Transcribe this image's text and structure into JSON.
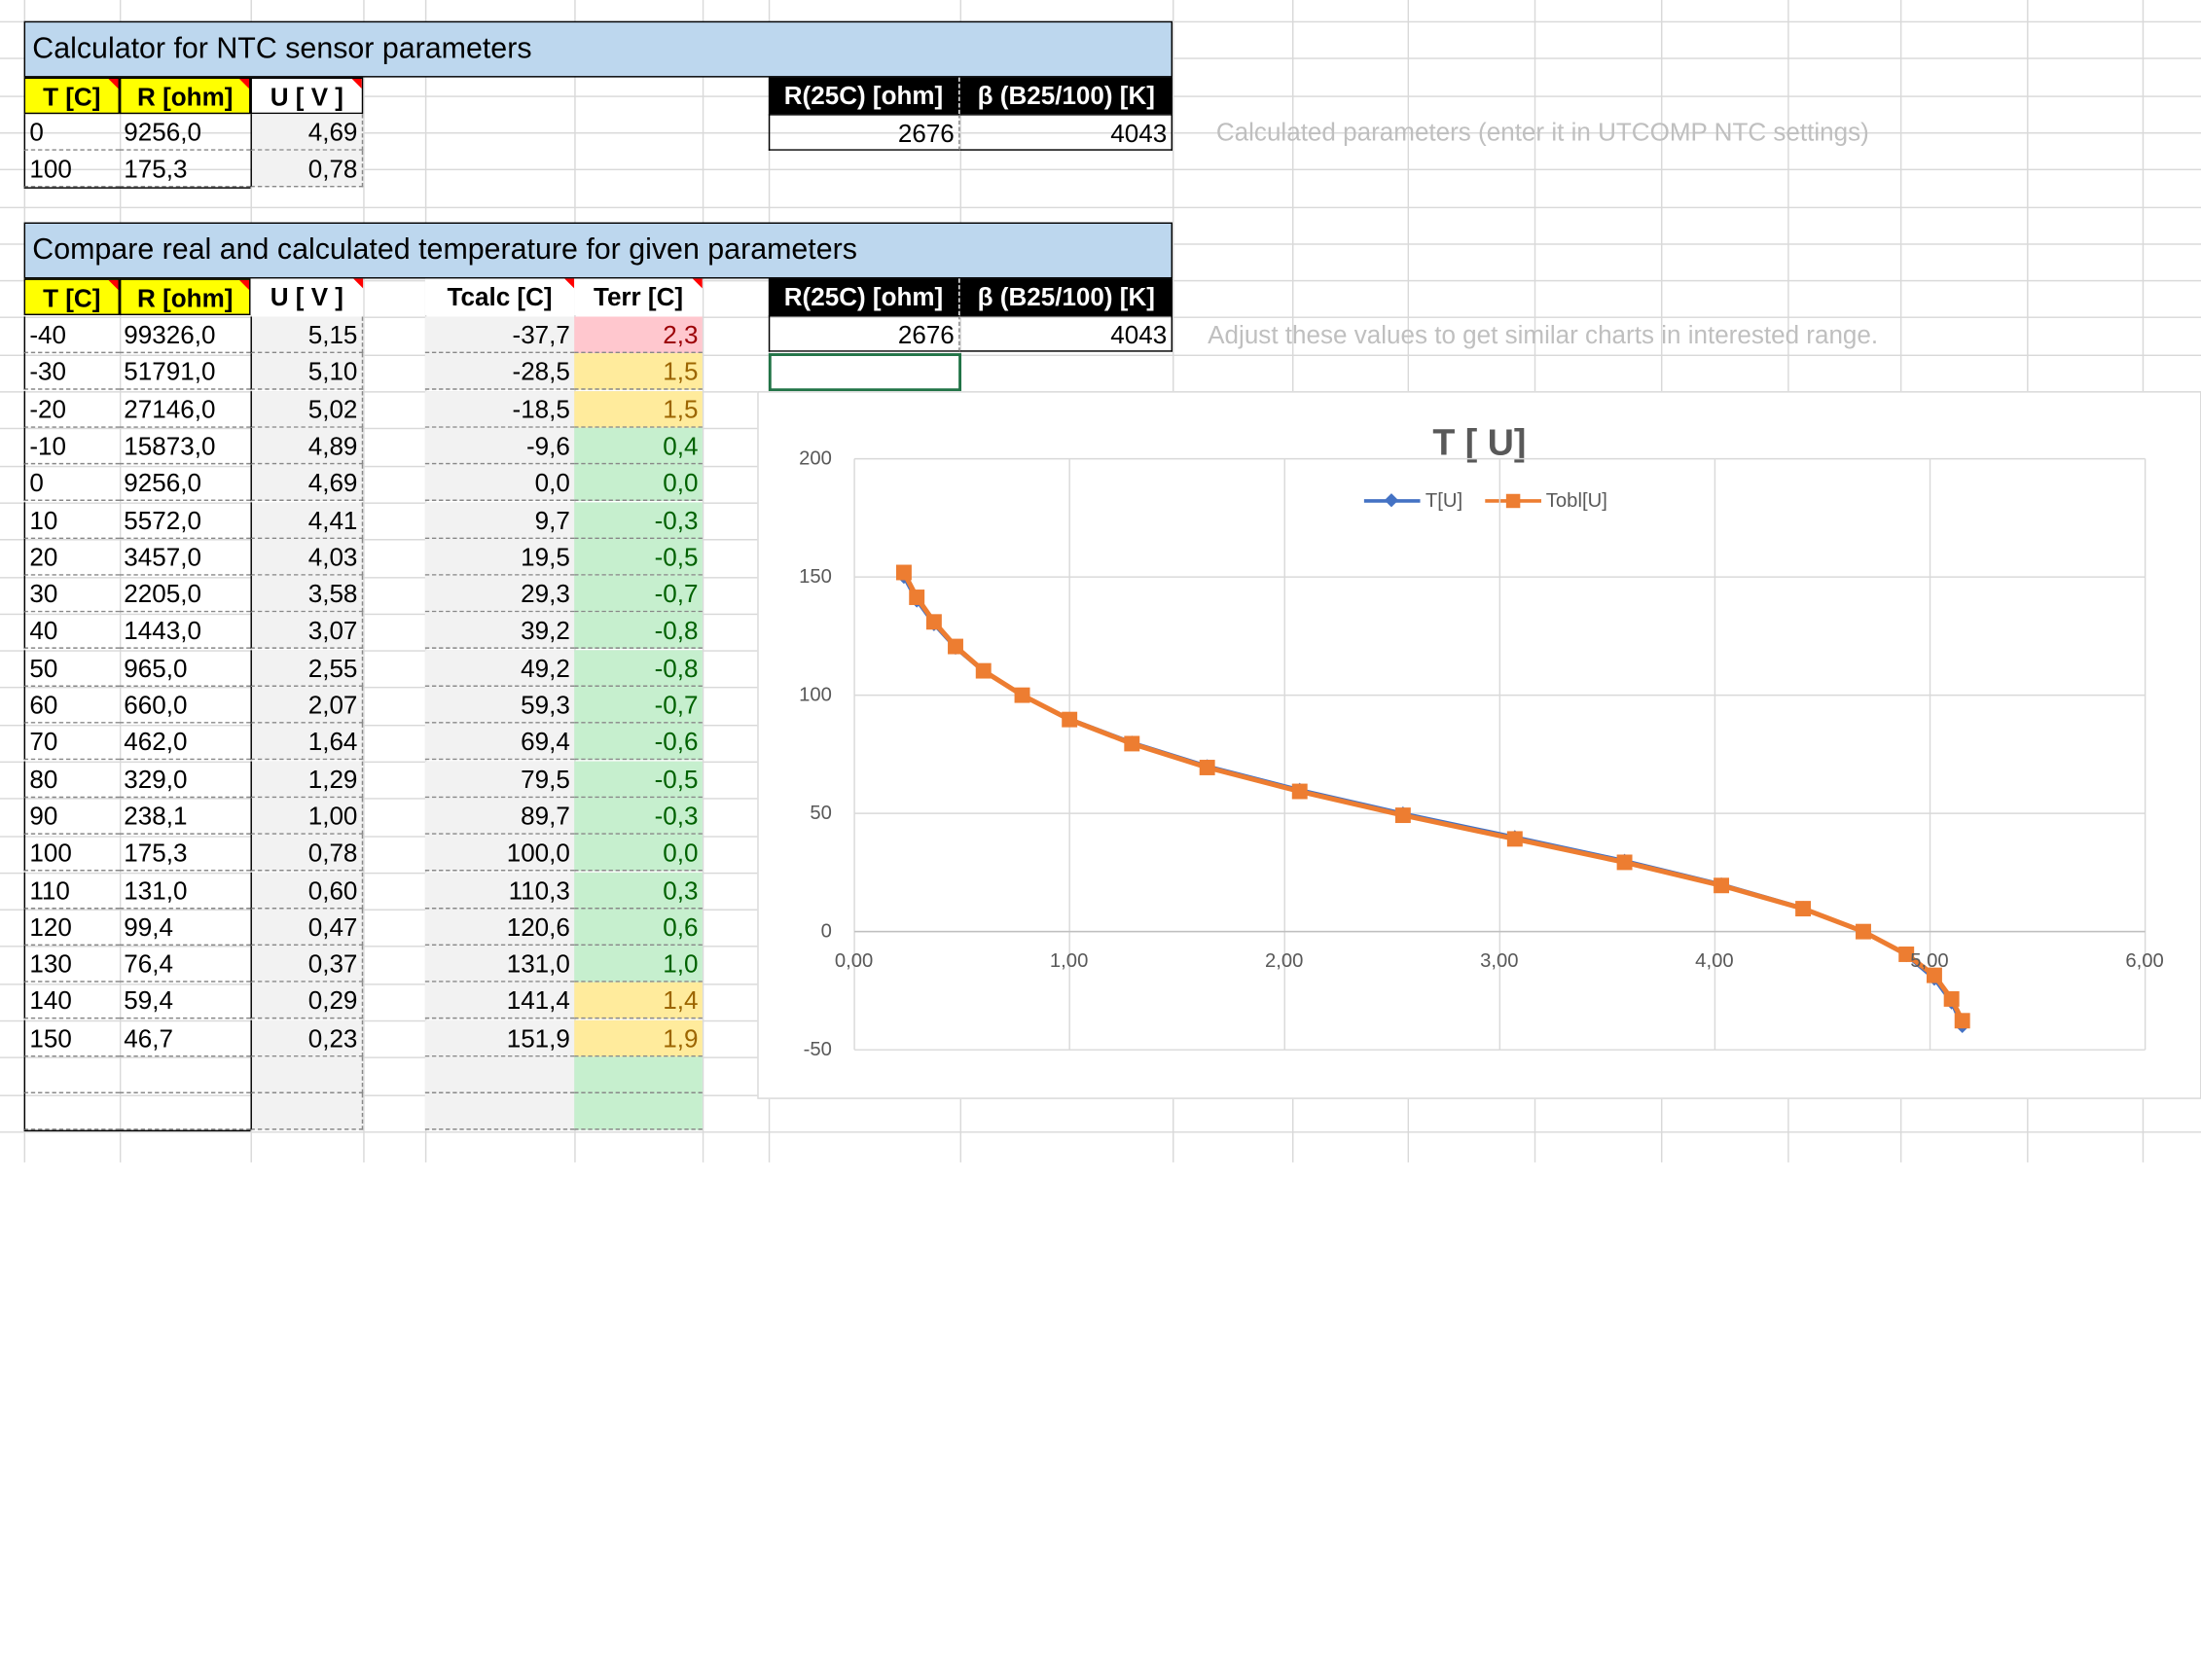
{
  "calc": {
    "title": "Calculator for NTC sensor parameters",
    "headers": [
      "T [C]",
      "R [ohm]",
      "U [ V ]"
    ],
    "rows": [
      [
        "0",
        "9256,0",
        "4,69"
      ],
      [
        "100",
        "175,3",
        "0,78"
      ]
    ],
    "param_headers": [
      "R(25C) [ohm]",
      "β (B25/100) [K]"
    ],
    "param_values": [
      "2676",
      "4043"
    ],
    "note": "Calculated parameters (enter it in UTCOMP NTC settings)"
  },
  "compare": {
    "title": "Compare real and calculated temperature for given parameters",
    "headers": [
      "T [C]",
      "R [ohm]",
      "U [ V ]",
      "Tcalc [C]",
      "Terr [C]"
    ],
    "rows": [
      [
        "-40",
        "99326,0",
        "5,15",
        "-37,7",
        "2,3",
        "red"
      ],
      [
        "-30",
        "51791,0",
        "5,10",
        "-28,5",
        "1,5",
        "yellow"
      ],
      [
        "-20",
        "27146,0",
        "5,02",
        "-18,5",
        "1,5",
        "yellow"
      ],
      [
        "-10",
        "15873,0",
        "4,89",
        "-9,6",
        "0,4",
        "green"
      ],
      [
        "0",
        "9256,0",
        "4,69",
        "0,0",
        "0,0",
        "green"
      ],
      [
        "10",
        "5572,0",
        "4,41",
        "9,7",
        "-0,3",
        "green"
      ],
      [
        "20",
        "3457,0",
        "4,03",
        "19,5",
        "-0,5",
        "green"
      ],
      [
        "30",
        "2205,0",
        "3,58",
        "29,3",
        "-0,7",
        "green"
      ],
      [
        "40",
        "1443,0",
        "3,07",
        "39,2",
        "-0,8",
        "green"
      ],
      [
        "50",
        "965,0",
        "2,55",
        "49,2",
        "-0,8",
        "green"
      ],
      [
        "60",
        "660,0",
        "2,07",
        "59,3",
        "-0,7",
        "green"
      ],
      [
        "70",
        "462,0",
        "1,64",
        "69,4",
        "-0,6",
        "green"
      ],
      [
        "80",
        "329,0",
        "1,29",
        "79,5",
        "-0,5",
        "green"
      ],
      [
        "90",
        "238,1",
        "1,00",
        "89,7",
        "-0,3",
        "green"
      ],
      [
        "100",
        "175,3",
        "0,78",
        "100,0",
        "0,0",
        "green"
      ],
      [
        "110",
        "131,0",
        "0,60",
        "110,3",
        "0,3",
        "green"
      ],
      [
        "120",
        "99,4",
        "0,47",
        "120,6",
        "0,6",
        "green"
      ],
      [
        "130",
        "76,4",
        "0,37",
        "131,0",
        "1,0",
        "green"
      ],
      [
        "140",
        "59,4",
        "0,29",
        "141,4",
        "1,4",
        "yellow"
      ],
      [
        "150",
        "46,7",
        "0,23",
        "151,9",
        "1,9",
        "yellow"
      ]
    ],
    "param_headers": [
      "R(25C) [ohm]",
      "β (B25/100) [K]"
    ],
    "param_values": [
      "2676",
      "4043"
    ],
    "note": "Adjust these values to get similar charts in interested range."
  },
  "colors": {
    "banner": "#bdd7ee",
    "header_yellow": "#ffff00",
    "series_t": "#4472c4",
    "series_tobl": "#ed7d31"
  },
  "chart_data": {
    "type": "scatter",
    "title": "T [ U]",
    "xlim": [
      0,
      6
    ],
    "ylim": [
      -50,
      200
    ],
    "x_ticks": [
      "0,00",
      "1,00",
      "2,00",
      "3,00",
      "4,00",
      "5,00",
      "6,00"
    ],
    "y_ticks": [
      "200",
      "150",
      "100",
      "50",
      "0",
      "-50"
    ],
    "legend_position": "top",
    "grid": true,
    "series": [
      {
        "name": "T[U]",
        "color": "#4472c4",
        "marker": "diamond",
        "x": [
          0.23,
          0.29,
          0.37,
          0.47,
          0.6,
          0.78,
          1.0,
          1.29,
          1.64,
          2.07,
          2.55,
          3.07,
          3.58,
          4.03,
          4.41,
          4.69,
          4.89,
          5.02,
          5.1,
          5.15
        ],
        "y": [
          150,
          140,
          130,
          120,
          110,
          100,
          90,
          80,
          70,
          60,
          50,
          40,
          30,
          20,
          10,
          0,
          -10,
          -20,
          -30,
          -40
        ]
      },
      {
        "name": "Tobl[U]",
        "color": "#ed7d31",
        "marker": "square",
        "x": [
          0.23,
          0.29,
          0.37,
          0.47,
          0.6,
          0.78,
          1.0,
          1.29,
          1.64,
          2.07,
          2.55,
          3.07,
          3.58,
          4.03,
          4.41,
          4.69,
          4.89,
          5.02,
          5.1,
          5.15
        ],
        "y": [
          151.9,
          141.4,
          131.0,
          120.6,
          110.3,
          100.0,
          89.7,
          79.5,
          69.4,
          59.3,
          49.2,
          39.2,
          29.3,
          19.5,
          9.7,
          0.0,
          -9.6,
          -18.5,
          -28.5,
          -37.7
        ]
      }
    ]
  }
}
